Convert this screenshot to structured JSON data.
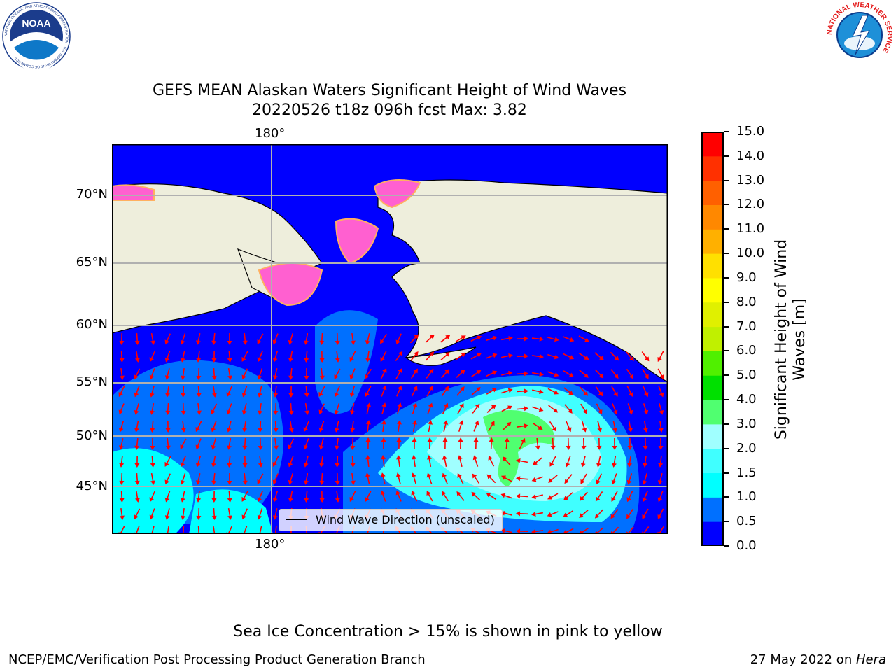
{
  "header": {
    "title_line1": "GEFS MEAN Alaskan Waters Significant Height of Wind Waves",
    "title_line2": "20220526 t18z 096h fcst   Max: 3.82"
  },
  "logos": {
    "noaa_text": "NOAA",
    "noaa_ring_text": "NATIONAL OCEANIC AND ATMOSPHERIC ADMINISTRATION · U.S. DEPARTMENT OF COMMERCE",
    "nws_ring_text": "NATIONAL WEATHER SERVICE"
  },
  "map": {
    "lat_labels": [
      "70°N",
      "65°N",
      "60°N",
      "55°N",
      "50°N",
      "45°N"
    ],
    "lon_label_top": "180°",
    "lon_label_bottom": "180°",
    "legend_label": "Wind Wave Direction (unscaled)",
    "colors": {
      "land": "#eeeedc",
      "gridline": "#b0b0b0",
      "arrow": "#ff0000",
      "coast": "#000000"
    }
  },
  "colorbar": {
    "label_line1": "Significant Height of Wind",
    "label_line2": "Waves [m]",
    "ticks": [
      "0.0",
      "0.5",
      "1.0",
      "1.5",
      "2.0",
      "3.0",
      "4.0",
      "5.0",
      "6.0",
      "7.0",
      "8.0",
      "9.0",
      "10.0",
      "11.0",
      "12.0",
      "13.0",
      "14.0",
      "15.0"
    ],
    "colors": [
      "#0000ff",
      "#0070ff",
      "#00ffff",
      "#40ffff",
      "#a0ffff",
      "#50ff70",
      "#00e000",
      "#50f000",
      "#c0f000",
      "#e0f000",
      "#ffff00",
      "#ffe000",
      "#ffb000",
      "#ff8800",
      "#ff6000",
      "#ff3000",
      "#ff0000"
    ]
  },
  "footer": {
    "caption": "Sea Ice Concentration > 15% is shown in pink to yellow",
    "left": "NCEP/EMC/Verification Post Processing Product Generation Branch",
    "date_text": "27 May 2022 on ",
    "host": "Hera"
  }
}
